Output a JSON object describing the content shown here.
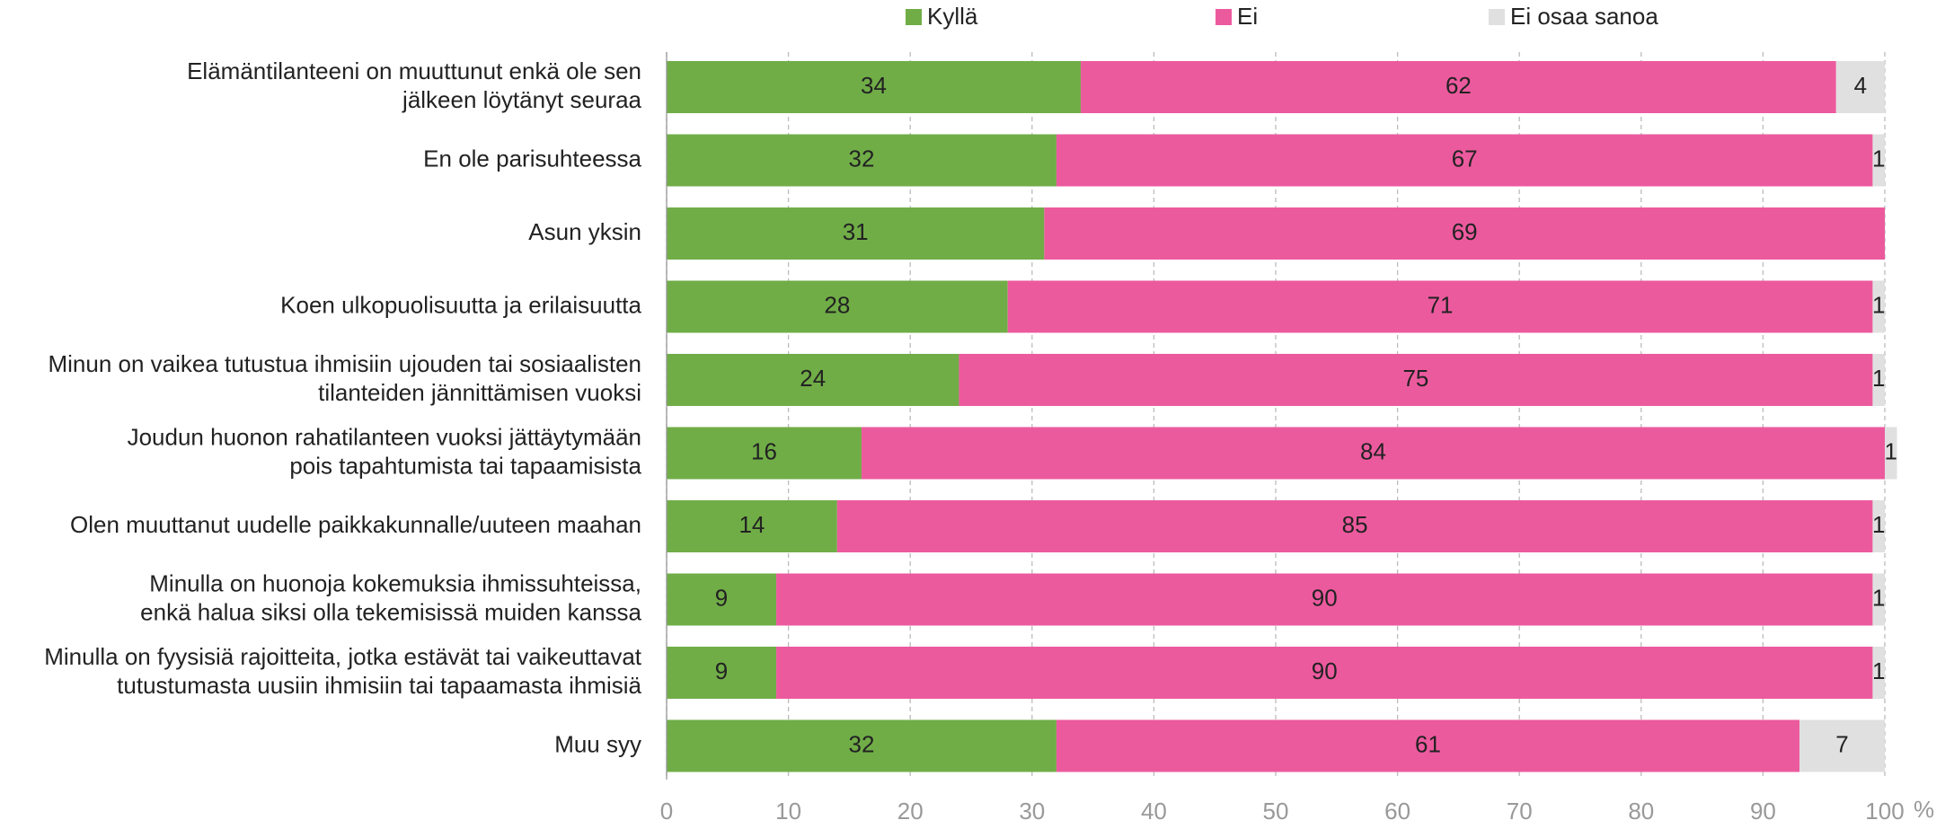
{
  "chart_data": {
    "type": "stacked-barh",
    "categories": [
      "Elämäntilanteeni on muuttunut enkä ole sen\njälkeen löytänyt seuraa",
      "En ole parisuhteessa",
      "Asun yksin",
      "Koen ulkopuolisuutta ja erilaisuutta",
      "Minun on vaikea tutustua ihmisiin ujouden tai sosiaalisten\ntilanteiden jännittämisen vuoksi",
      "Joudun huonon rahatilanteen vuoksi jättäytymään\npois tapahtumista tai tapaamisista",
      "Olen muuttanut uudelle paikkakunnalle/uuteen maahan",
      "Minulla on huonoja kokemuksia ihmissuhteissa,\nenkä halua siksi olla tekemisissä muiden kanssa",
      "Minulla on fyysisiä rajoitteita, jotka estävät tai vaikeuttavat\ntutustumasta uusiin ihmisiin tai tapaamasta ihmisiä",
      "Muu syy"
    ],
    "series": [
      {
        "name": "Kyllä",
        "color": "#70ad47",
        "values": [
          34,
          32,
          31,
          28,
          24,
          16,
          14,
          9,
          9,
          32
        ]
      },
      {
        "name": "Ei",
        "color": "#ec5a9e",
        "values": [
          62,
          67,
          69,
          71,
          75,
          84,
          85,
          90,
          90,
          61
        ]
      },
      {
        "name": "Ei osaa sanoa",
        "color": "#e0e0e0",
        "values": [
          4,
          1,
          null,
          1,
          1,
          1,
          1,
          1,
          1,
          7
        ]
      }
    ],
    "xlim": [
      0,
      100
    ],
    "xticks": [
      0,
      10,
      20,
      30,
      40,
      50,
      60,
      70,
      80,
      90,
      100
    ],
    "x_unit": "%",
    "grid": true,
    "legend": "top"
  }
}
